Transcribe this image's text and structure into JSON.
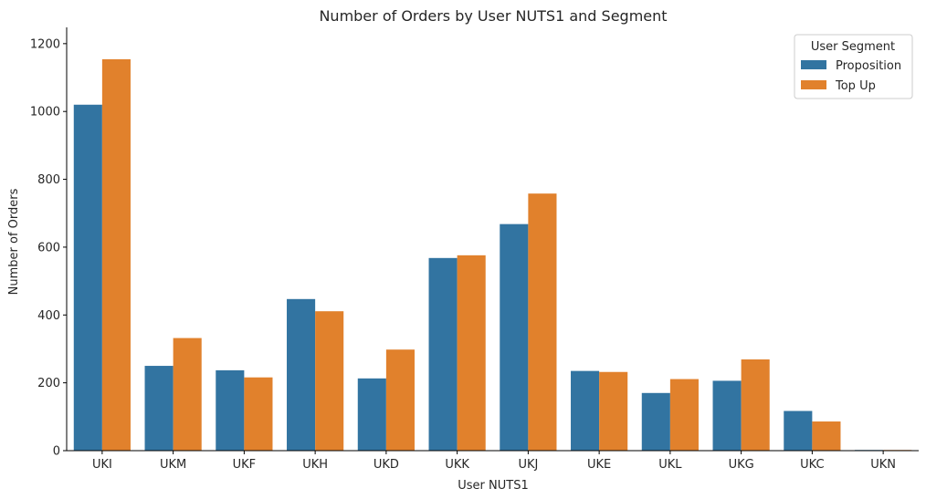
{
  "chart_data": {
    "type": "bar",
    "title": "Number of Orders by User NUTS1 and Segment",
    "xlabel": "User NUTS1",
    "ylabel": "Number of Orders",
    "categories": [
      "UKI",
      "UKM",
      "UKF",
      "UKH",
      "UKD",
      "UKK",
      "UKJ",
      "UKE",
      "UKL",
      "UKG",
      "UKC",
      "UKN"
    ],
    "series": [
      {
        "name": "Proposition",
        "color": "#3274a1",
        "values": [
          1020,
          250,
          237,
          447,
          213,
          568,
          668,
          235,
          170,
          206,
          117,
          2
        ]
      },
      {
        "name": "Top Up",
        "color": "#e1812c",
        "values": [
          1154,
          332,
          216,
          411,
          298,
          576,
          758,
          232,
          211,
          269,
          86,
          2
        ]
      }
    ],
    "ylim": [
      0,
      1200
    ],
    "yticks": [
      0,
      200,
      400,
      600,
      800,
      1000,
      1200
    ],
    "legend": {
      "title": "User Segment",
      "position": "top-right"
    },
    "grid": false
  }
}
